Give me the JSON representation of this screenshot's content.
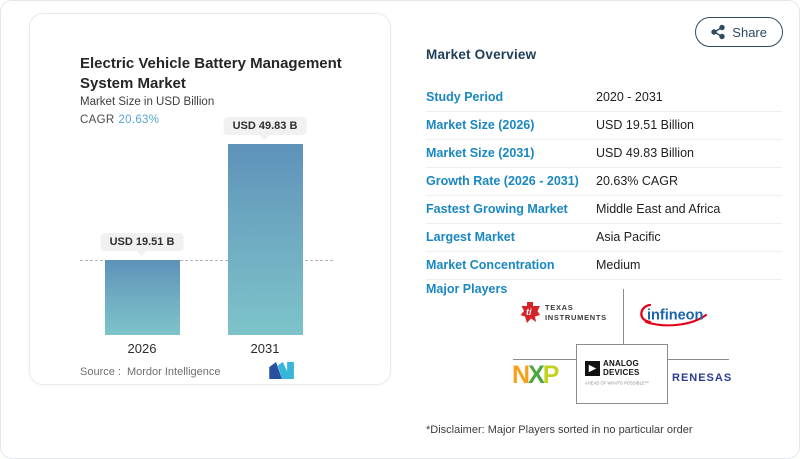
{
  "share": {
    "label": "Share"
  },
  "chart_panel": {
    "title": "Electric Vehicle Battery Management System Market",
    "subtitle": "Market Size in USD Billion",
    "cagr_label": "CAGR",
    "cagr_value": "20.63%",
    "source_label": "Source :",
    "source_value": "Mordor Intelligence"
  },
  "chart_data": {
    "type": "bar",
    "categories": [
      "2026",
      "2031"
    ],
    "values": [
      19.51,
      49.83
    ],
    "bar_labels": [
      "USD 19.51 B",
      "USD 49.83 B"
    ],
    "title": "Electric Vehicle Battery Management System Market",
    "ylabel": "Market Size in USD Billion",
    "ylim": [
      0,
      49.83
    ],
    "reference_line": 19.51,
    "grid": false,
    "bar_color_top": "#5e92ba",
    "bar_color_bottom": "#7dc4c9"
  },
  "overview": {
    "heading": "Market Overview",
    "rows": [
      {
        "label": "Study Period",
        "value": "2020 - 2031"
      },
      {
        "label": "Market Size (2026)",
        "value": "USD 19.51 Billion"
      },
      {
        "label": "Market Size (2031)",
        "value": "USD 49.83 Billion"
      },
      {
        "label": "Growth Rate (2026 - 2031)",
        "value": "20.63% CAGR"
      },
      {
        "label": "Fastest Growing Market",
        "value": "Middle East and Africa"
      },
      {
        "label": "Largest Market",
        "value": "Asia Pacific"
      },
      {
        "label": "Market Concentration",
        "value": "Medium"
      }
    ],
    "major_players_label": "Major Players",
    "major_players": [
      "Texas Instruments",
      "Infineon",
      "NXP",
      "Analog Devices",
      "Renesas"
    ],
    "disclaimer": "*Disclaimer: Major Players sorted in no particular order"
  },
  "logos": {
    "ti_glyph": "ti",
    "ti_line1": "TEXAS",
    "ti_line2": "INSTRUMENTS",
    "infineon": "infineon",
    "nxp_n": "N",
    "nxp_x": "X",
    "nxp_p": "P",
    "ad_line1": "ANALOG",
    "ad_line2": "DEVICES",
    "ad_tagline": "AHEAD OF WHAT'S POSSIBLE™",
    "renesas": "RENESAS"
  },
  "colors": {
    "label_blue": "#1987c1",
    "heading_navy": "#1d3e57",
    "cagr_accent": "#54a8ce",
    "share_slate": "#2e4a61",
    "pill_bg": "#f1f1f2",
    "mordor_dark": "#27519f",
    "mordor_cyan": "#36b6d9"
  }
}
